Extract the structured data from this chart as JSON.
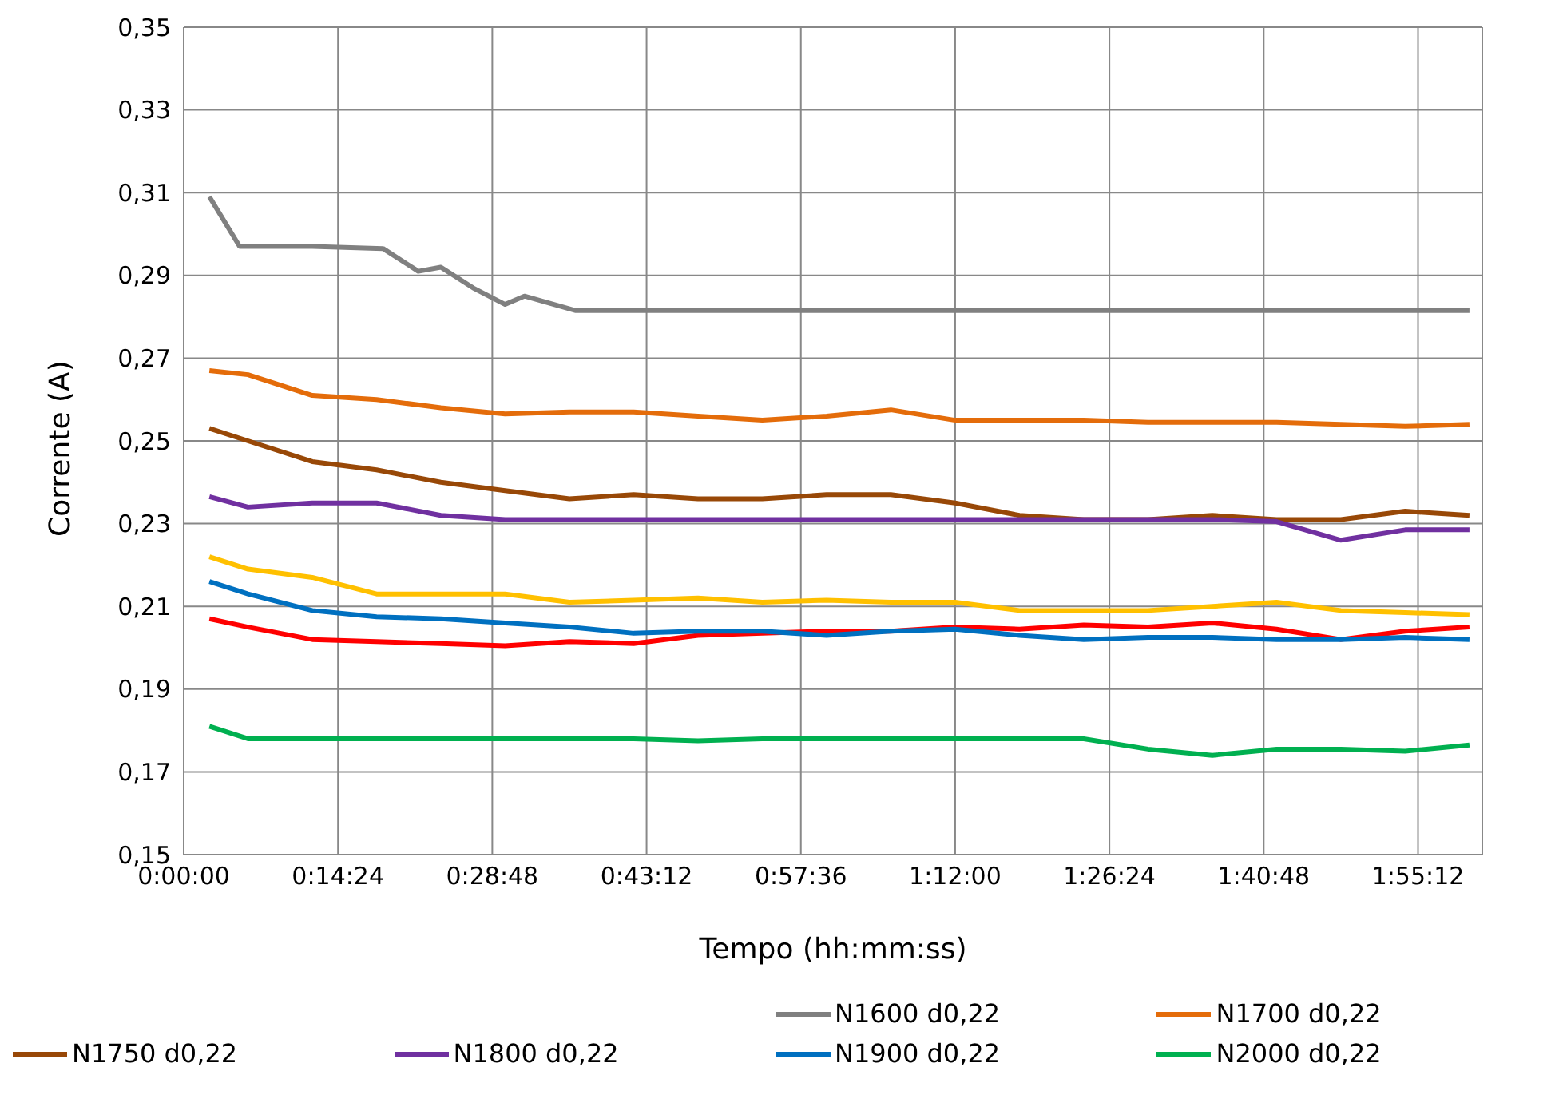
{
  "chart_data": {
    "type": "line",
    "xlabel": "Tempo (hh:mm:ss)",
    "ylabel": "Corrente (A)",
    "x": [
      0.04,
      0.1,
      0.2,
      0.3,
      0.4,
      0.5,
      0.6,
      0.7,
      0.8,
      0.9,
      1.0,
      1.1,
      1.2,
      1.3,
      1.4,
      1.5,
      1.6,
      1.7,
      1.8,
      1.9,
      2.0
    ],
    "series": [
      {
        "color": "#ff0000",
        "values": [
          0.207,
          0.205,
          0.202,
          0.2015,
          0.201,
          0.2005,
          0.2015,
          0.201,
          0.203,
          0.2035,
          0.204,
          0.204,
          0.205,
          0.2045,
          0.2055,
          0.205,
          0.206,
          0.2045,
          0.202,
          0.204,
          0.205
        ]
      },
      {
        "color": "#ffc000",
        "values": [
          0.222,
          0.219,
          0.217,
          0.213,
          0.213,
          0.213,
          0.211,
          0.2115,
          0.212,
          0.211,
          0.2115,
          0.211,
          0.211,
          0.209,
          0.209,
          0.209,
          0.21,
          0.211,
          0.209,
          0.2085,
          0.208
        ]
      },
      {
        "name": "N1600 d0,22",
        "color": "#808080",
        "x": [
          0.04,
          0.087,
          0.2,
          0.31,
          0.365,
          0.4,
          0.45,
          0.5,
          0.53,
          0.61,
          2.0
        ],
        "values": [
          0.309,
          0.297,
          0.297,
          0.2965,
          0.291,
          0.292,
          0.287,
          0.283,
          0.285,
          0.2815,
          0.2815
        ]
      },
      {
        "name": "N1700 d0,22",
        "color": "#e46c0a",
        "values": [
          0.267,
          0.266,
          0.261,
          0.26,
          0.258,
          0.2565,
          0.257,
          0.257,
          0.256,
          0.255,
          0.256,
          0.2575,
          0.255,
          0.255,
          0.255,
          0.2545,
          0.2545,
          0.2545,
          0.254,
          0.2535,
          0.254
        ]
      },
      {
        "name": "N1750 d0,22",
        "color": "#984807",
        "values": [
          0.253,
          0.25,
          0.245,
          0.243,
          0.24,
          0.238,
          0.236,
          0.237,
          0.236,
          0.236,
          0.237,
          0.237,
          0.235,
          0.232,
          0.231,
          0.231,
          0.232,
          0.231,
          0.231,
          0.233,
          0.232
        ]
      },
      {
        "name": "N1800 d0,22",
        "color": "#7030a0",
        "values": [
          0.2365,
          0.234,
          0.235,
          0.235,
          0.232,
          0.231,
          0.231,
          0.231,
          0.231,
          0.231,
          0.231,
          0.231,
          0.231,
          0.231,
          0.231,
          0.231,
          0.231,
          0.2305,
          0.226,
          0.2285,
          0.2285
        ]
      },
      {
        "name": "N1900 d0,22",
        "color": "#0070c0",
        "values": [
          0.216,
          0.213,
          0.209,
          0.2075,
          0.207,
          0.206,
          0.205,
          0.2035,
          0.204,
          0.204,
          0.203,
          0.204,
          0.2045,
          0.203,
          0.202,
          0.2025,
          0.2025,
          0.202,
          0.202,
          0.2025,
          0.202
        ]
      },
      {
        "name": "N2000 d0,22",
        "color": "#00b050",
        "values": [
          0.181,
          0.178,
          0.178,
          0.178,
          0.178,
          0.178,
          0.178,
          0.178,
          0.1775,
          0.178,
          0.178,
          0.178,
          0.178,
          0.178,
          0.178,
          0.1755,
          0.174,
          0.1755,
          0.1755,
          0.175,
          0.1765
        ]
      }
    ],
    "xlim": [
      0,
      2.02
    ],
    "ylim": [
      0.15,
      0.35
    ],
    "xticks": [
      {
        "value": 0,
        "label": "0:00:00"
      },
      {
        "value": 0.24,
        "label": "0:14:24"
      },
      {
        "value": 0.48,
        "label": "0:28:48"
      },
      {
        "value": 0.72,
        "label": "0:43:12"
      },
      {
        "value": 0.96,
        "label": "0:57:36"
      },
      {
        "value": 1.2,
        "label": "1:12:00"
      },
      {
        "value": 1.44,
        "label": "1:26:24"
      },
      {
        "value": 1.68,
        "label": "1:40:48"
      },
      {
        "value": 1.92,
        "label": "1:55:12"
      }
    ],
    "yticks": [
      {
        "value": 0.15,
        "label": "0,15"
      },
      {
        "value": 0.17,
        "label": "0,17"
      },
      {
        "value": 0.19,
        "label": "0,19"
      },
      {
        "value": 0.21,
        "label": "0,21"
      },
      {
        "value": 0.23,
        "label": "0,23"
      },
      {
        "value": 0.25,
        "label": "0,25"
      },
      {
        "value": 0.27,
        "label": "0,27"
      },
      {
        "value": 0.29,
        "label": "0,29"
      },
      {
        "value": 0.31,
        "label": "0,31"
      },
      {
        "value": 0.33,
        "label": "0,33"
      },
      {
        "value": 0.35,
        "label": "0,35"
      }
    ],
    "grid": true,
    "legend": "bottom",
    "marker": "none",
    "line_style": "solid"
  }
}
